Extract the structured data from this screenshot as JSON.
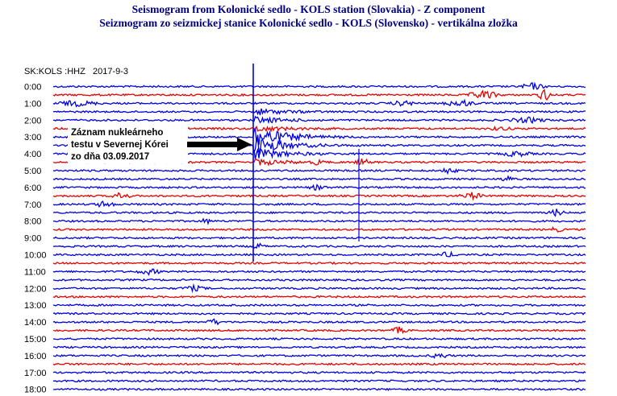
{
  "title_en": "Seismogram from Kolonické sedlo - KOLS station (Slovakia) - Z component",
  "title_sk": "Seizmogram zo seizmickej stanice Kolonické sedlo - KOLS (Slovensko) - vertikálna zložka",
  "colors": {
    "title": "#000080",
    "blue_trace": "#0000e6",
    "red_trace": "#e60000",
    "text": "#000000",
    "arrow": "#000000"
  },
  "chart_data": {
    "type": "line",
    "station_label": "SK:KOLS :HHZ",
    "date_label": "2017-9-3",
    "row_interval_minutes": 30,
    "row_color_cycle": [
      "blue",
      "red",
      "blue",
      "blue"
    ],
    "hour_labels": [
      "0:00",
      "1:00",
      "2:00",
      "3:00",
      "4:00",
      "5:00",
      "6:00",
      "7:00",
      "8:00",
      "9:00",
      "10:00",
      "11:00",
      "12:00",
      "13:00",
      "14:00",
      "15:00",
      "16:00",
      "17:00",
      "18:00"
    ],
    "annotation": {
      "lines": [
        "Záznam nukleárneho",
        "testu v Severnej Kórei",
        "zo dňa 03.09.2017"
      ]
    }
  }
}
